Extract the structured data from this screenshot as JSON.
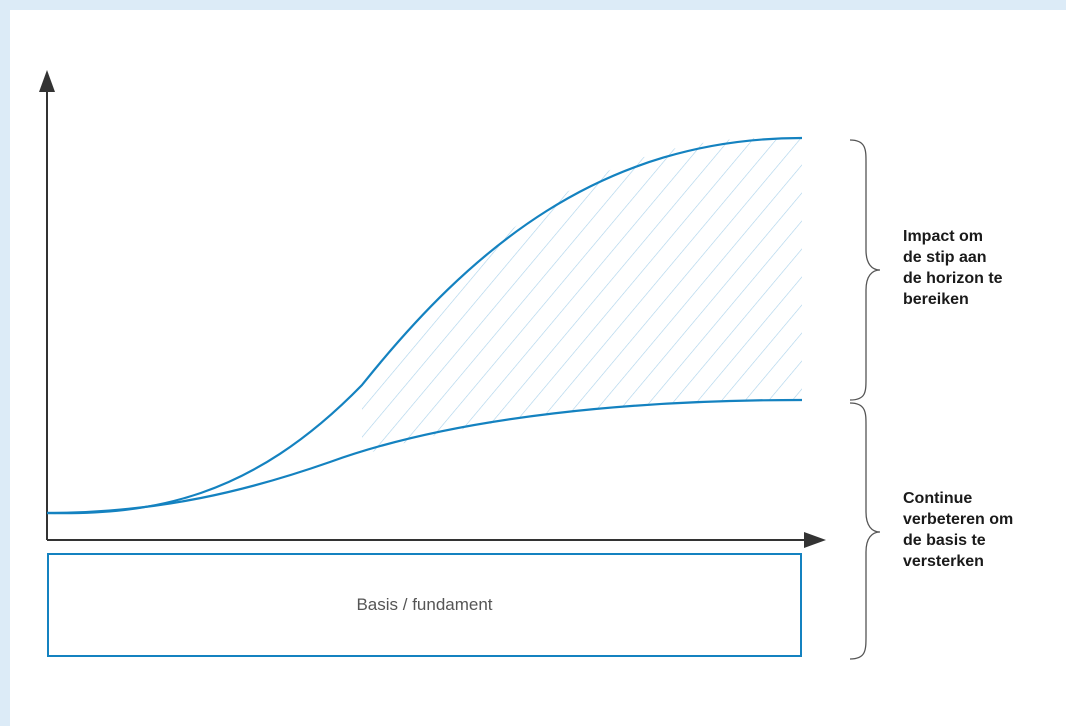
{
  "colors": {
    "background": "#dcebf7",
    "panel": "#ffffff",
    "curve": "#1482c0",
    "hatch": "#a9d1ea",
    "axis": "#333333",
    "brace": "#555555",
    "text": "#1a1a1a"
  },
  "labels": {
    "impact": "Impact om\nde stip aan\nde horizon te\nbereiken",
    "continuous": "Continue\nverbeteren om\nde basis te\nversterken",
    "basis": "Basis / fundament"
  }
}
